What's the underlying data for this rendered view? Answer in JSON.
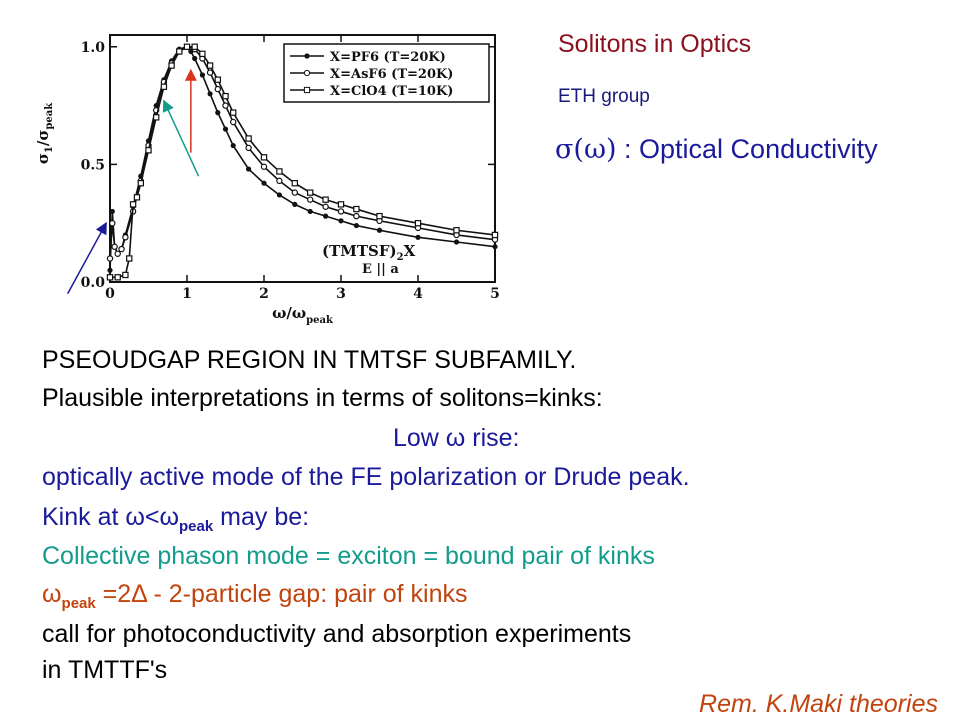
{
  "header": {
    "title": "Solitons in Optics",
    "group": "ETH group",
    "sigma_symbol": "σ(ω)",
    "sigma_label": " : Optical Conductivity"
  },
  "chart_data": {
    "type": "line",
    "xlabel": "ω/ω",
    "xlabel_sub": "peak",
    "ylabel": "σ",
    "ylabel_sub": "1",
    "ylabel_den": "/σ",
    "ylabel_den_sub": "peak",
    "xlim": [
      0,
      5
    ],
    "ylim": [
      0,
      1.05
    ],
    "x_ticks": [
      "0",
      "1",
      "2",
      "3",
      "4",
      "5"
    ],
    "y_ticks": [
      "0.0",
      "0.5",
      "1.0"
    ],
    "y_tick_values": [
      0,
      0.5,
      1.0
    ],
    "legend_position": "top-right",
    "annotation_compound": "(TMTSF)",
    "annotation_compound_sub": "2",
    "annotation_compound_end": "X",
    "annotation_field": "E || a",
    "series": [
      {
        "name": "X=PF6 (T=20K)",
        "marker": "filled",
        "x": [
          0.0,
          0.03,
          0.06,
          0.1,
          0.15,
          0.2,
          0.3,
          0.4,
          0.5,
          0.6,
          0.7,
          0.8,
          0.9,
          1.0,
          1.05,
          1.1,
          1.2,
          1.3,
          1.4,
          1.5,
          1.6,
          1.8,
          2.0,
          2.2,
          2.4,
          2.6,
          2.8,
          3.0,
          3.2,
          3.5,
          4.0,
          4.5,
          5.0
        ],
        "y": [
          0.05,
          0.3,
          0.15,
          0.12,
          0.14,
          0.2,
          0.32,
          0.45,
          0.6,
          0.75,
          0.86,
          0.94,
          0.99,
          1.0,
          0.98,
          0.95,
          0.88,
          0.8,
          0.72,
          0.65,
          0.58,
          0.48,
          0.42,
          0.37,
          0.33,
          0.3,
          0.28,
          0.26,
          0.24,
          0.22,
          0.19,
          0.17,
          0.15
        ]
      },
      {
        "name": "X=AsF6 (T=20K)",
        "marker": "open",
        "x": [
          0.0,
          0.03,
          0.06,
          0.1,
          0.15,
          0.2,
          0.3,
          0.4,
          0.5,
          0.6,
          0.7,
          0.8,
          0.9,
          1.0,
          1.1,
          1.2,
          1.3,
          1.4,
          1.5,
          1.6,
          1.8,
          2.0,
          2.2,
          2.4,
          2.6,
          2.8,
          3.0,
          3.2,
          3.5,
          4.0,
          4.5,
          5.0
        ],
        "y": [
          0.1,
          0.25,
          0.15,
          0.12,
          0.14,
          0.19,
          0.3,
          0.43,
          0.58,
          0.73,
          0.85,
          0.93,
          0.98,
          1.0,
          0.99,
          0.95,
          0.89,
          0.82,
          0.75,
          0.68,
          0.57,
          0.49,
          0.43,
          0.38,
          0.35,
          0.32,
          0.3,
          0.28,
          0.26,
          0.23,
          0.2,
          0.18
        ]
      },
      {
        "name": "X=ClO4 (T=10K)",
        "marker": "square",
        "x": [
          0.0,
          0.1,
          0.2,
          0.25,
          0.3,
          0.35,
          0.4,
          0.5,
          0.6,
          0.7,
          0.8,
          0.9,
          1.0,
          1.1,
          1.2,
          1.3,
          1.4,
          1.5,
          1.6,
          1.8,
          2.0,
          2.2,
          2.4,
          2.6,
          2.8,
          3.0,
          3.2,
          3.5,
          4.0,
          4.5,
          5.0
        ],
        "y": [
          0.02,
          0.02,
          0.03,
          0.1,
          0.33,
          0.36,
          0.42,
          0.56,
          0.7,
          0.83,
          0.92,
          0.98,
          1.0,
          1.0,
          0.97,
          0.92,
          0.86,
          0.79,
          0.72,
          0.61,
          0.53,
          0.47,
          0.42,
          0.38,
          0.35,
          0.33,
          0.31,
          0.28,
          0.25,
          0.22,
          0.2
        ]
      }
    ],
    "arrows": [
      {
        "color": "#1a1a9a",
        "from": [
          -0.55,
          -0.05
        ],
        "to": [
          -0.05,
          0.25
        ]
      },
      {
        "color": "#139c8c",
        "from": [
          1.15,
          0.45
        ],
        "to": [
          0.7,
          0.77
        ]
      },
      {
        "color": "#d9341a",
        "from": [
          1.05,
          0.55
        ],
        "to": [
          1.05,
          0.9
        ]
      }
    ]
  },
  "body": {
    "line1": "PSEOUDGAP REGION IN TMTSF SUBFAMILY.",
    "line2": "Plausible interpretations in terms of solitons=kinks:",
    "line3": "Low ω rise:",
    "line4": "optically active mode of  the  FE  polarization  or Drude peak.",
    "line5_a": "Kink at ω<ω",
    "line5_sub": "peak",
    "line5_b": " may be:",
    "line6": "Collective phason mode = exciton = bound pair of kinks",
    "line7_a": "ω",
    "line7_sub": "peak",
    "line7_b": " =2Δ - 2-particle gap: pair of kinks",
    "line8": "call for photoconductivity and absorption experiments",
    "line9": "in TMTTF's",
    "remark": "Rem. K.Maki theories"
  },
  "colors": {
    "title": "#8b0f1c",
    "blue": "#1a1a9a",
    "teal": "#139c8c",
    "orange": "#c1440e",
    "red_arrow": "#d9341a"
  }
}
